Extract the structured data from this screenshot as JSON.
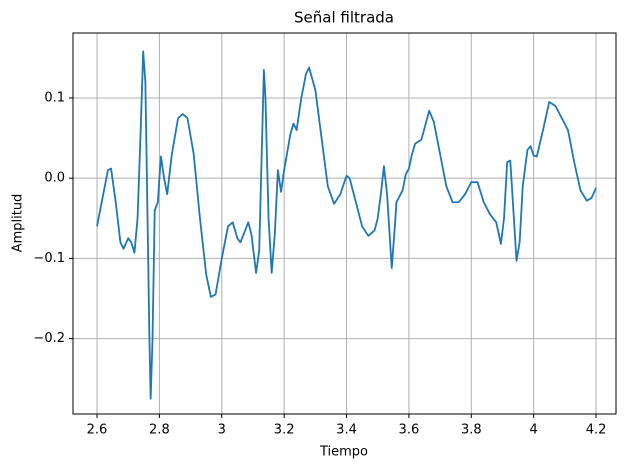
{
  "chart_data": {
    "type": "line",
    "title": "Señal filtrada",
    "x_label": "Tiempo",
    "y_label": "Amplitud",
    "grid": true,
    "xlim": [
      2.523,
      4.264
    ],
    "ylim": [
      -0.294,
      0.181
    ],
    "xticks": [
      2.6,
      2.8,
      3.0,
      3.2,
      3.4,
      3.6,
      3.8,
      4.0,
      4.2
    ],
    "yticks": [
      {
        "value": -0.2,
        "label": "−0.2"
      },
      {
        "value": -0.1,
        "label": "−0.1"
      },
      {
        "value": 0,
        "label": "0.0"
      },
      0.1
    ],
    "x": [
      2.6,
      2.62,
      2.635,
      2.645,
      2.66,
      2.675,
      2.685,
      2.7,
      2.71,
      2.72,
      2.73,
      2.74,
      2.748,
      2.755,
      2.762,
      2.768,
      2.772,
      2.778,
      2.785,
      2.795,
      2.8,
      2.805,
      2.815,
      2.825,
      2.84,
      2.86,
      2.875,
      2.89,
      2.91,
      2.93,
      2.95,
      2.965,
      2.98,
      3.0,
      3.02,
      3.035,
      3.05,
      3.06,
      3.075,
      3.085,
      3.095,
      3.11,
      3.12,
      3.13,
      3.135,
      3.14,
      3.15,
      3.16,
      3.17,
      3.18,
      3.19,
      3.2,
      3.22,
      3.23,
      3.24,
      3.255,
      3.27,
      3.28,
      3.3,
      3.32,
      3.34,
      3.36,
      3.38,
      3.4,
      3.41,
      3.43,
      3.45,
      3.47,
      3.49,
      3.5,
      3.51,
      3.52,
      3.53,
      3.545,
      3.555,
      3.56,
      3.58,
      3.59,
      3.6,
      3.61,
      3.62,
      3.64,
      3.665,
      3.68,
      3.7,
      3.72,
      3.74,
      3.76,
      3.78,
      3.8,
      3.82,
      3.84,
      3.86,
      3.88,
      3.895,
      3.905,
      3.915,
      3.925,
      3.935,
      3.945,
      3.955,
      3.965,
      3.98,
      3.99,
      4.0,
      4.01,
      4.03,
      4.05,
      4.07,
      4.09,
      4.11,
      4.13,
      4.15,
      4.17,
      4.185,
      4.2
    ],
    "series": [
      {
        "color": "#1f77b4",
        "values": [
          -0.06,
          -0.02,
          0.01,
          0.012,
          -0.03,
          -0.08,
          -0.088,
          -0.075,
          -0.08,
          -0.093,
          -0.05,
          0.06,
          0.158,
          0.12,
          -0.05,
          -0.2,
          -0.275,
          -0.2,
          -0.04,
          -0.03,
          0.0,
          0.027,
          0.0,
          -0.02,
          0.03,
          0.075,
          0.08,
          0.075,
          0.03,
          -0.05,
          -0.12,
          -0.148,
          -0.145,
          -0.1,
          -0.06,
          -0.055,
          -0.075,
          -0.08,
          -0.065,
          -0.055,
          -0.07,
          -0.118,
          -0.09,
          0.06,
          0.135,
          0.1,
          -0.05,
          -0.118,
          -0.07,
          0.01,
          -0.017,
          0.01,
          0.055,
          0.068,
          0.06,
          0.1,
          0.13,
          0.138,
          0.11,
          0.05,
          -0.01,
          -0.032,
          -0.02,
          0.003,
          0.0,
          -0.03,
          -0.06,
          -0.072,
          -0.065,
          -0.05,
          -0.02,
          0.015,
          -0.02,
          -0.112,
          -0.06,
          -0.03,
          -0.015,
          0.005,
          0.012,
          0.03,
          0.043,
          0.048,
          0.084,
          0.07,
          0.03,
          -0.01,
          -0.03,
          -0.03,
          -0.02,
          -0.005,
          -0.005,
          -0.03,
          -0.045,
          -0.055,
          -0.082,
          -0.05,
          0.02,
          0.022,
          -0.04,
          -0.103,
          -0.08,
          -0.01,
          0.035,
          0.04,
          0.028,
          0.027,
          0.06,
          0.095,
          0.09,
          0.075,
          0.06,
          0.02,
          -0.015,
          -0.028,
          -0.025,
          -0.012
        ]
      }
    ]
  }
}
